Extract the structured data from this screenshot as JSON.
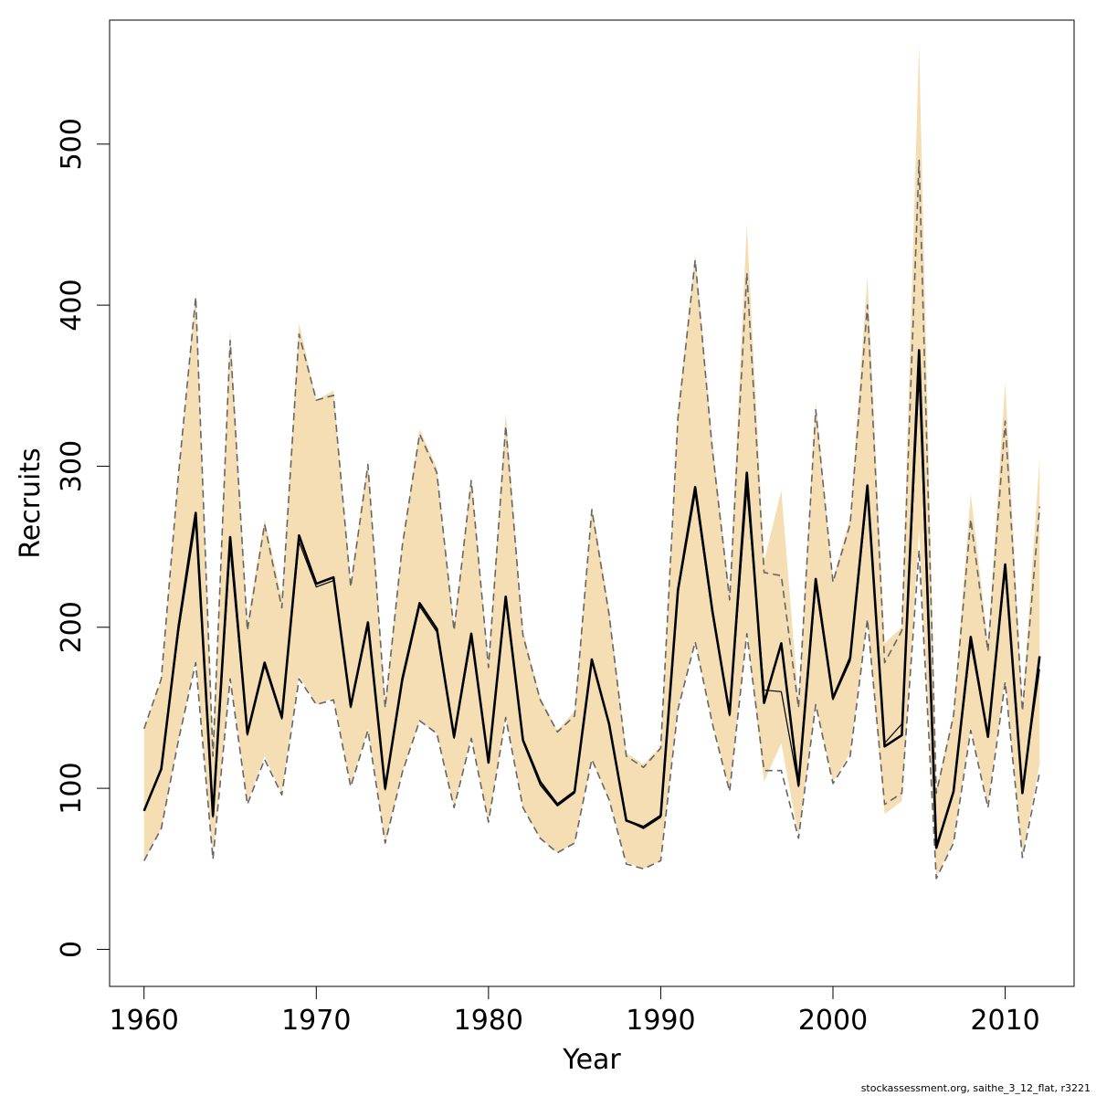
{
  "chart_data": {
    "type": "line",
    "xlabel": "Year",
    "ylabel": "Recruits",
    "xlim": [
      1958,
      2014
    ],
    "ylim": [
      -23,
      577
    ],
    "xticks": [
      1960,
      1970,
      1980,
      1990,
      2000,
      2010
    ],
    "yticks": [
      0,
      100,
      200,
      300,
      400,
      500
    ],
    "footnote": "stockassessment.org, saithe_3_12_flat, r3221",
    "colors": {
      "band": "#f5deb3",
      "line": "#000000",
      "dashed": "#666666",
      "frame": "#000000"
    },
    "x": [
      1960,
      1961,
      1962,
      1963,
      1964,
      1965,
      1966,
      1967,
      1968,
      1969,
      1970,
      1971,
      1972,
      1973,
      1974,
      1975,
      1976,
      1977,
      1978,
      1979,
      1980,
      1981,
      1982,
      1983,
      1984,
      1985,
      1986,
      1987,
      1988,
      1989,
      1990,
      1991,
      1992,
      1993,
      1994,
      1995,
      1996,
      1997,
      1998,
      1999,
      2000,
      2001,
      2002,
      2003,
      2004,
      2005,
      2006,
      2007,
      2008,
      2009,
      2010,
      2011,
      2012
    ],
    "series": [
      {
        "name": "",
        "style": "solid-thick",
        "values": [
          86,
          112,
          200,
          271,
          83,
          256,
          134,
          178,
          144,
          257,
          227,
          231,
          151,
          203,
          100,
          168,
          215,
          199,
          132,
          196,
          116,
          219,
          130,
          104,
          90,
          98,
          180,
          140,
          80,
          76,
          83,
          223,
          287,
          210,
          146,
          296,
          153,
          190,
          102,
          230,
          156,
          181,
          288,
          126,
          133,
          372,
          63,
          98,
          194,
          132,
          239,
          97,
          182
        ]
      },
      {
        "name": "",
        "style": "solid-thin",
        "values": [
          86,
          112,
          197,
          266,
          82,
          249,
          133,
          176,
          143,
          253,
          225,
          229,
          150,
          201,
          99,
          166,
          213,
          197,
          131,
          193,
          116,
          216,
          129,
          102,
          89,
          97,
          179,
          139,
          80,
          75,
          82,
          221,
          283,
          208,
          145,
          286,
          161,
          160,
          101,
          226,
          155,
          179,
          284,
          128,
          140,
          355,
          65,
          97,
          190,
          132,
          235,
          99,
          174
        ]
      },
      {
        "name": "",
        "style": "dashed-upper",
        "values": [
          137,
          168,
          295,
          405,
          120,
          378,
          198,
          264,
          212,
          382,
          341,
          344,
          225,
          301,
          150,
          251,
          320,
          296,
          198,
          291,
          175,
          325,
          195,
          155,
          135,
          145,
          273,
          208,
          120,
          113,
          125,
          330,
          428,
          310,
          217,
          420,
          234,
          232,
          150,
          335,
          228,
          264,
          400,
          178,
          198,
          490,
          97,
          145,
          267,
          185,
          328,
          148,
          275
        ]
      },
      {
        "name": "",
        "style": "dashed-lower",
        "values": [
          55,
          75,
          130,
          178,
          56,
          168,
          90,
          118,
          96,
          168,
          152,
          155,
          101,
          136,
          66,
          110,
          142,
          134,
          88,
          131,
          79,
          144,
          88,
          69,
          60,
          66,
          118,
          93,
          53,
          50,
          55,
          149,
          191,
          140,
          98,
          196,
          111,
          111,
          69,
          152,
          103,
          120,
          205,
          90,
          97,
          248,
          44,
          66,
          136,
          88,
          166,
          57,
          110
        ]
      }
    ],
    "band": {
      "upper": [
        137,
        168,
        295,
        408,
        125,
        385,
        204,
        267,
        218,
        389,
        341,
        347,
        228,
        304,
        153,
        253,
        323,
        299,
        200,
        294,
        178,
        333,
        198,
        157,
        136,
        148,
        276,
        212,
        122,
        115,
        126,
        335,
        432,
        315,
        222,
        450,
        241,
        285,
        154,
        340,
        230,
        268,
        418,
        190,
        200,
        562,
        99,
        147,
        283,
        190,
        352,
        150,
        305
      ],
      "lower": [
        55,
        75,
        130,
        180,
        58,
        170,
        91,
        120,
        97,
        170,
        152,
        156,
        102,
        137,
        66,
        110,
        142,
        134,
        88,
        132,
        79,
        145,
        88,
        69,
        60,
        66,
        118,
        93,
        54,
        50,
        55,
        150,
        191,
        141,
        99,
        197,
        104,
        128,
        70,
        152,
        104,
        122,
        205,
        84,
        92,
        260,
        45,
        67,
        138,
        90,
        168,
        59,
        115
      ]
    }
  }
}
